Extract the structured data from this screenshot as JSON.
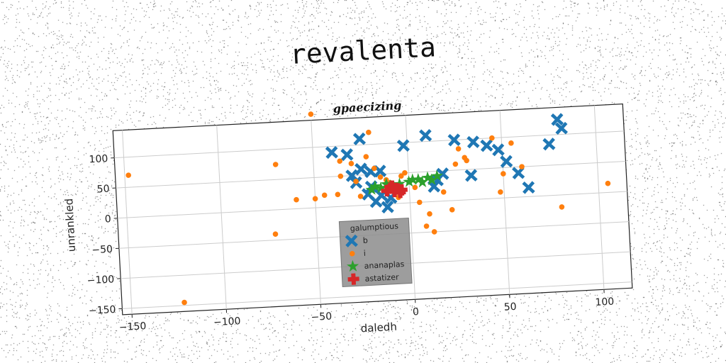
{
  "suptitle": "revalenta",
  "chart_data": {
    "type": "scatter",
    "title": "gpaecizing",
    "xlabel": "daledh",
    "ylabel": "unrankled",
    "xlim": [
      -155,
      115
    ],
    "ylim": [
      -160,
      145
    ],
    "xticks": [
      -150,
      -100,
      -50,
      0,
      50,
      100
    ],
    "yticks": [
      -150,
      -100,
      -50,
      0,
      50,
      100
    ],
    "grid": true,
    "legend": {
      "title": "galumptious",
      "placement": "lower-center"
    },
    "series": [
      {
        "name": "b",
        "marker": "X",
        "color": "#1f77b4",
        "points": [
          [
            -40,
            90
          ],
          [
            -32,
            85
          ],
          [
            -25,
            60
          ],
          [
            -20,
            55
          ],
          [
            -15,
            55
          ],
          [
            -30,
            50
          ],
          [
            -28,
            38
          ],
          [
            -20,
            30
          ],
          [
            -22,
            18
          ],
          [
            -15,
            15
          ],
          [
            -10,
            10
          ],
          [
            -18,
            5
          ],
          [
            -12,
            -5
          ],
          [
            -25,
            110
          ],
          [
            -2,
            95
          ],
          [
            10,
            110
          ],
          [
            25,
            100
          ],
          [
            35,
            95
          ],
          [
            42,
            88
          ],
          [
            48,
            80
          ],
          [
            52,
            60
          ],
          [
            58,
            40
          ],
          [
            63,
            15
          ],
          [
            75,
            85
          ],
          [
            80,
            125
          ],
          [
            82,
            110
          ],
          [
            18,
            45
          ],
          [
            15,
            35
          ],
          [
            13,
            25
          ],
          [
            33,
            40
          ]
        ]
      },
      {
        "name": "i",
        "marker": "o",
        "color": "#ff7f0e",
        "points": [
          [
            -148,
            70
          ],
          [
            -122,
            -145
          ],
          [
            -70,
            75
          ],
          [
            -72,
            -40
          ],
          [
            -60,
            15
          ],
          [
            -50,
            155
          ],
          [
            -50,
            15
          ],
          [
            -45,
            20
          ],
          [
            -38,
            20
          ],
          [
            -36,
            75
          ],
          [
            -36,
            50
          ],
          [
            -30,
            70
          ],
          [
            -28,
            40
          ],
          [
            -26,
            15
          ],
          [
            -22,
            80
          ],
          [
            -20,
            120
          ],
          [
            -18,
            60
          ],
          [
            -15,
            45
          ],
          [
            -12,
            40
          ],
          [
            -10,
            35
          ],
          [
            -8,
            20
          ],
          [
            -4,
            45
          ],
          [
            -2,
            50
          ],
          [
            3,
            25
          ],
          [
            5,
            0
          ],
          [
            8,
            -40
          ],
          [
            10,
            -20
          ],
          [
            12,
            -50
          ],
          [
            22,
            -15
          ],
          [
            25,
            60
          ],
          [
            27,
            85
          ],
          [
            30,
            70
          ],
          [
            31,
            65
          ],
          [
            45,
            100
          ],
          [
            50,
            40
          ],
          [
            55,
            90
          ],
          [
            60,
            50
          ],
          [
            48,
            10
          ],
          [
            80,
            -20
          ],
          [
            105,
            15
          ],
          [
            18,
            15
          ],
          [
            -6,
            10
          ]
        ]
      },
      {
        "name": "ananaplas",
        "marker": "*",
        "color": "#2ca02c",
        "points": [
          [
            -20,
            25
          ],
          [
            -15,
            27
          ],
          [
            -10,
            30
          ],
          [
            -5,
            32
          ],
          [
            0,
            35
          ],
          [
            5,
            38
          ],
          [
            10,
            40
          ],
          [
            15,
            42
          ],
          [
            -18,
            30
          ],
          [
            -8,
            28
          ],
          [
            2,
            38
          ],
          [
            12,
            36
          ],
          [
            -12,
            33
          ],
          [
            7,
            33
          ]
        ]
      },
      {
        "name": "astatizer",
        "marker": "P",
        "color": "#d62728",
        "points": [
          [
            -12,
            22
          ],
          [
            -10,
            26
          ],
          [
            -8,
            20
          ],
          [
            -6,
            24
          ],
          [
            -4,
            22
          ],
          [
            -9,
            29
          ],
          [
            -5,
            18
          ],
          [
            -7,
            25
          ]
        ]
      }
    ]
  }
}
